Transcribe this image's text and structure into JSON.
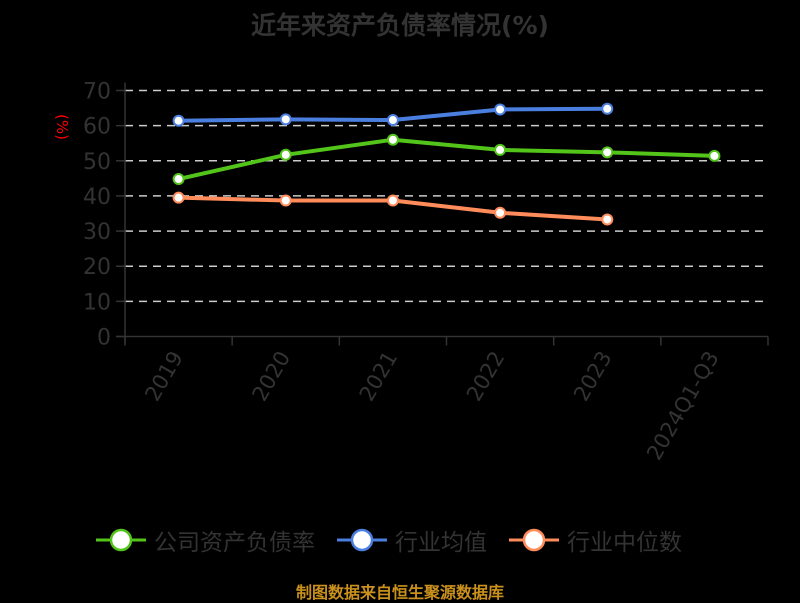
{
  "title": "近年来资产负债率情况(%)",
  "ylabel_text": "(%)",
  "footer": "制图数据来自恒生聚源数据库",
  "colors": {
    "background": "#000000",
    "text": "#333333",
    "ylabel": "#ff0000",
    "grid": "#cccccc",
    "axis": "#333333",
    "footer": "#c9901c"
  },
  "legend": [
    {
      "label": "公司资产负债率",
      "color": "#52c41a"
    },
    {
      "label": "行业均值",
      "color": "#4a7fe0"
    },
    {
      "label": "行业中位数",
      "color": "#ff8c5a"
    }
  ],
  "chart_data": {
    "type": "line",
    "title": "近年来资产负债率情况(%)",
    "xlabel": "",
    "ylabel": "(%)",
    "categories": [
      "2019",
      "2020",
      "2021",
      "2022",
      "2023",
      "2024Q1-Q3"
    ],
    "ylim": [
      0,
      70
    ],
    "yticks": [
      0,
      10,
      20,
      30,
      40,
      50,
      60,
      70
    ],
    "grid": true,
    "legend_position": "bottom",
    "series": [
      {
        "name": "公司资产负债率",
        "color": "#52c41a",
        "values": [
          44.8,
          51.7,
          56.0,
          53.1,
          52.4,
          51.4
        ]
      },
      {
        "name": "行业均值",
        "color": "#4a7fe0",
        "values": [
          61.4,
          61.8,
          61.6,
          64.6,
          64.8,
          null
        ]
      },
      {
        "name": "行业中位数",
        "color": "#ff8c5a",
        "values": [
          39.5,
          38.7,
          38.7,
          35.2,
          33.3,
          null
        ]
      }
    ]
  }
}
